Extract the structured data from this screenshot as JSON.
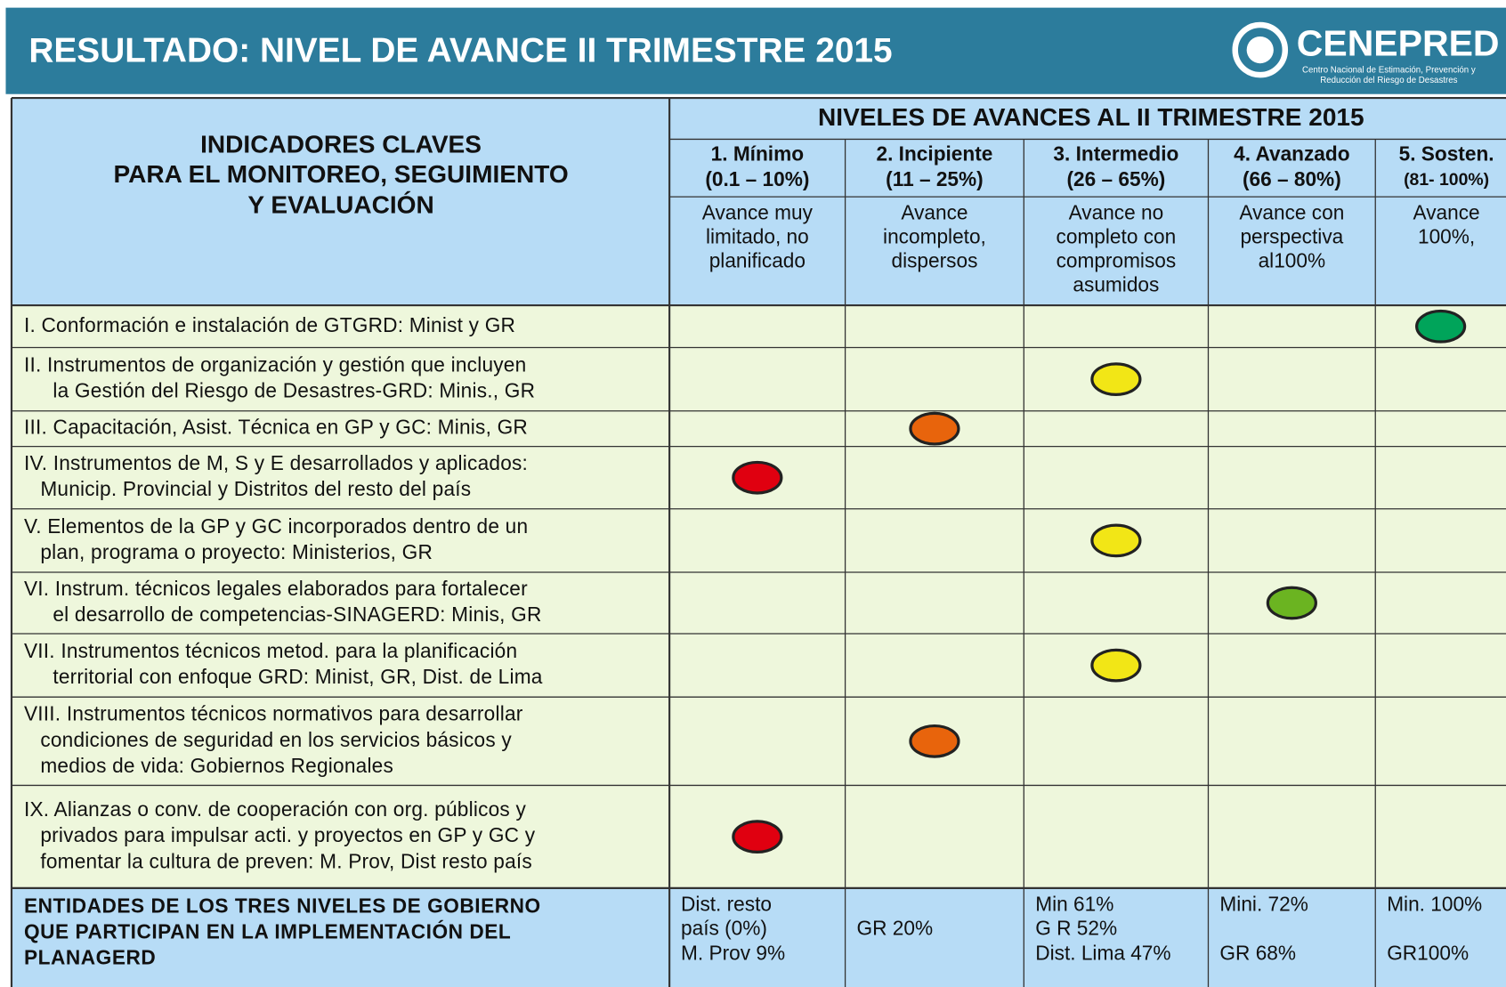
{
  "header": {
    "title": "RESULTADO: NIVEL DE AVANCE II TRIMESTRE 2015",
    "logo_name": "CENEPRED",
    "logo_subtitle": [
      "Centro Nacional de Estimación, Prevención y",
      "Reducción del Riesgo de Desastres"
    ]
  },
  "table": {
    "indicator_header": [
      "INDICADORES  CLAVES",
      "PARA EL MONITOREO, SEGUIMIENTO",
      "Y EVALUACIÓN"
    ],
    "levels_header": "NIVELES  DE AVANCES AL II TRIMESTRE 2015",
    "levels": [
      {
        "name": "1.  Mínimo",
        "range": "(0.1 – 10%)",
        "description": [
          "Avance muy",
          "limitado, no",
          "planificado"
        ],
        "color": "#e00010"
      },
      {
        "name": "2. Incipiente",
        "range": "(11 – 25%)",
        "description": [
          "Avance",
          "incompleto,",
          "dispersos"
        ],
        "color": "#e8640c"
      },
      {
        "name": "3. Intermedio",
        "range": "(26 – 65%)",
        "description": [
          "Avance no",
          "completo con",
          "compromisos",
          "asumidos"
        ],
        "color": "#f2e616"
      },
      {
        "name": "4. Avanzado",
        "range": "(66 – 80%)",
        "description": [
          "Avance con",
          "perspectiva",
          "al100%"
        ],
        "color": "#6bb421"
      },
      {
        "name": "5. Sosten.",
        "range": "(81- 100%)",
        "description": [
          "Avance",
          "100%,"
        ],
        "color": "#00a45a"
      }
    ],
    "rows": [
      {
        "label": [
          "I. Conformación  e  instalación  de  GTGRD:   Minist  y GR"
        ],
        "level": 5
      },
      {
        "label": [
          "II. Instrumentos  de organización  y gestión  que incluyen",
          "la Gestión  del Riesgo  de Desastres-GRD:  Minis., GR"
        ],
        "level": 3
      },
      {
        "label": [
          "III. Capacitación, Asist. Técnica en GP   y GC: Minis, GR"
        ],
        "level": 2
      },
      {
        "label": [
          "IV. Instrumentos  de M, S y E desarrollados  y aplicados:",
          "Municip. Provincial  y Distritos del resto del país"
        ],
        "level": 1
      },
      {
        "label": [
          "V. Elementos  de la GP y GC incorporados dentro de un",
          "plan,  programa  o proyecto: Ministerios,  GR"
        ],
        "level": 3
      },
      {
        "label": [
          "VI. Instrum. técnicos legales elaborados para fortalecer",
          "el desarrollo de competencias-SINAGERD:  Minis, GR"
        ],
        "level": 4
      },
      {
        "label": [
          "VII. Instrumentos  técnicos metod.  para la planificación",
          "territorial con enfoque GRD: Minist, GR, Dist. de Lima"
        ],
        "level": 3
      },
      {
        "label": [
          "VIII. Instrumentos  técnicos normativos  para desarrollar",
          "condiciones  de seguridad  en los servicios básicos y",
          "medios de vida: Gobiernos  Regionales"
        ],
        "level": 2
      },
      {
        "label": [
          "IX. Alianzas  o conv. de cooperación con org. públicos  y",
          "privados  para impulsar  acti. y proyectos en GP y GC  y",
          "fomentar  la cultura de preven: M. Prov, Dist resto  país"
        ],
        "level": 1
      }
    ],
    "footer": {
      "label": [
        "ENTIDADES  DE LOS TRES NIVELES  DE GOBIERNO",
        "QUE PARTICIPAN  EN LA IMPLEMENTACIÓN  DEL",
        "PLANAGERD"
      ],
      "cells": [
        [
          "Dist.  resto",
          "país (0%)",
          "M. Prov 9%"
        ],
        [
          "GR 20%"
        ],
        [
          "Min 61%",
          "G R 52%",
          "Dist. Lima 47%"
        ],
        [
          "Mini. 72%",
          "GR 68%"
        ],
        [
          "Min.  100%",
          "GR100%"
        ]
      ]
    }
  }
}
